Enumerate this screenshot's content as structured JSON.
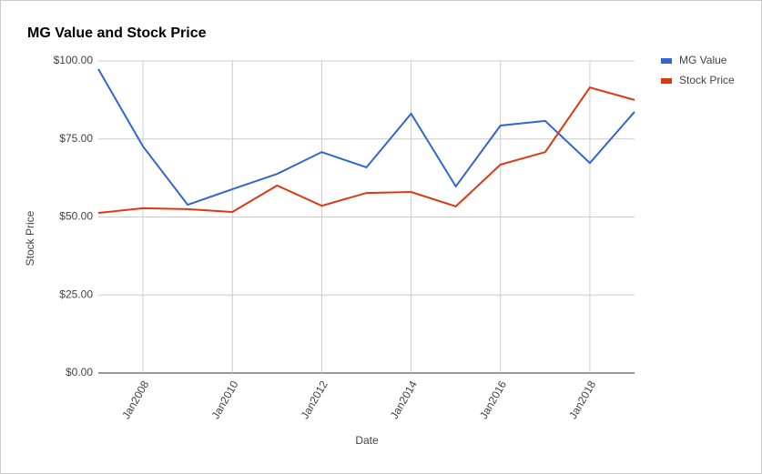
{
  "chart_data": {
    "type": "line",
    "title": "MG Value and Stock Price",
    "x_label": "Date",
    "y_label": "Stock Price",
    "categories": [
      null,
      "Jan2008",
      null,
      "Jan2010",
      null,
      "Jan2012",
      null,
      "Jan2014",
      null,
      "Jan2016",
      null,
      "Jan2018",
      null
    ],
    "series": [
      {
        "name": "MG Value",
        "color": "#3366cc",
        "values": [
          97.4,
          72.6,
          53.9,
          58.9,
          63.8,
          70.8,
          65.9,
          83.1,
          59.8,
          79.3,
          80.8,
          67.3,
          83.7
        ]
      },
      {
        "name": "Stock Price",
        "color": "#dc3912",
        "values": [
          51.3,
          52.8,
          52.5,
          51.6,
          60.1,
          53.6,
          57.7,
          58.0,
          53.4,
          66.8,
          70.8,
          91.5,
          87.5
        ]
      }
    ],
    "ylim": [
      0,
      100
    ],
    "yticks": [
      {
        "value": 0,
        "label": "$0.00"
      },
      {
        "value": 25,
        "label": "$25.00"
      },
      {
        "value": 50,
        "label": "$50.00"
      },
      {
        "value": 75,
        "label": "$75.00"
      },
      {
        "value": 100,
        "label": "$100.00"
      }
    ],
    "grid": true,
    "legend": "right"
  }
}
